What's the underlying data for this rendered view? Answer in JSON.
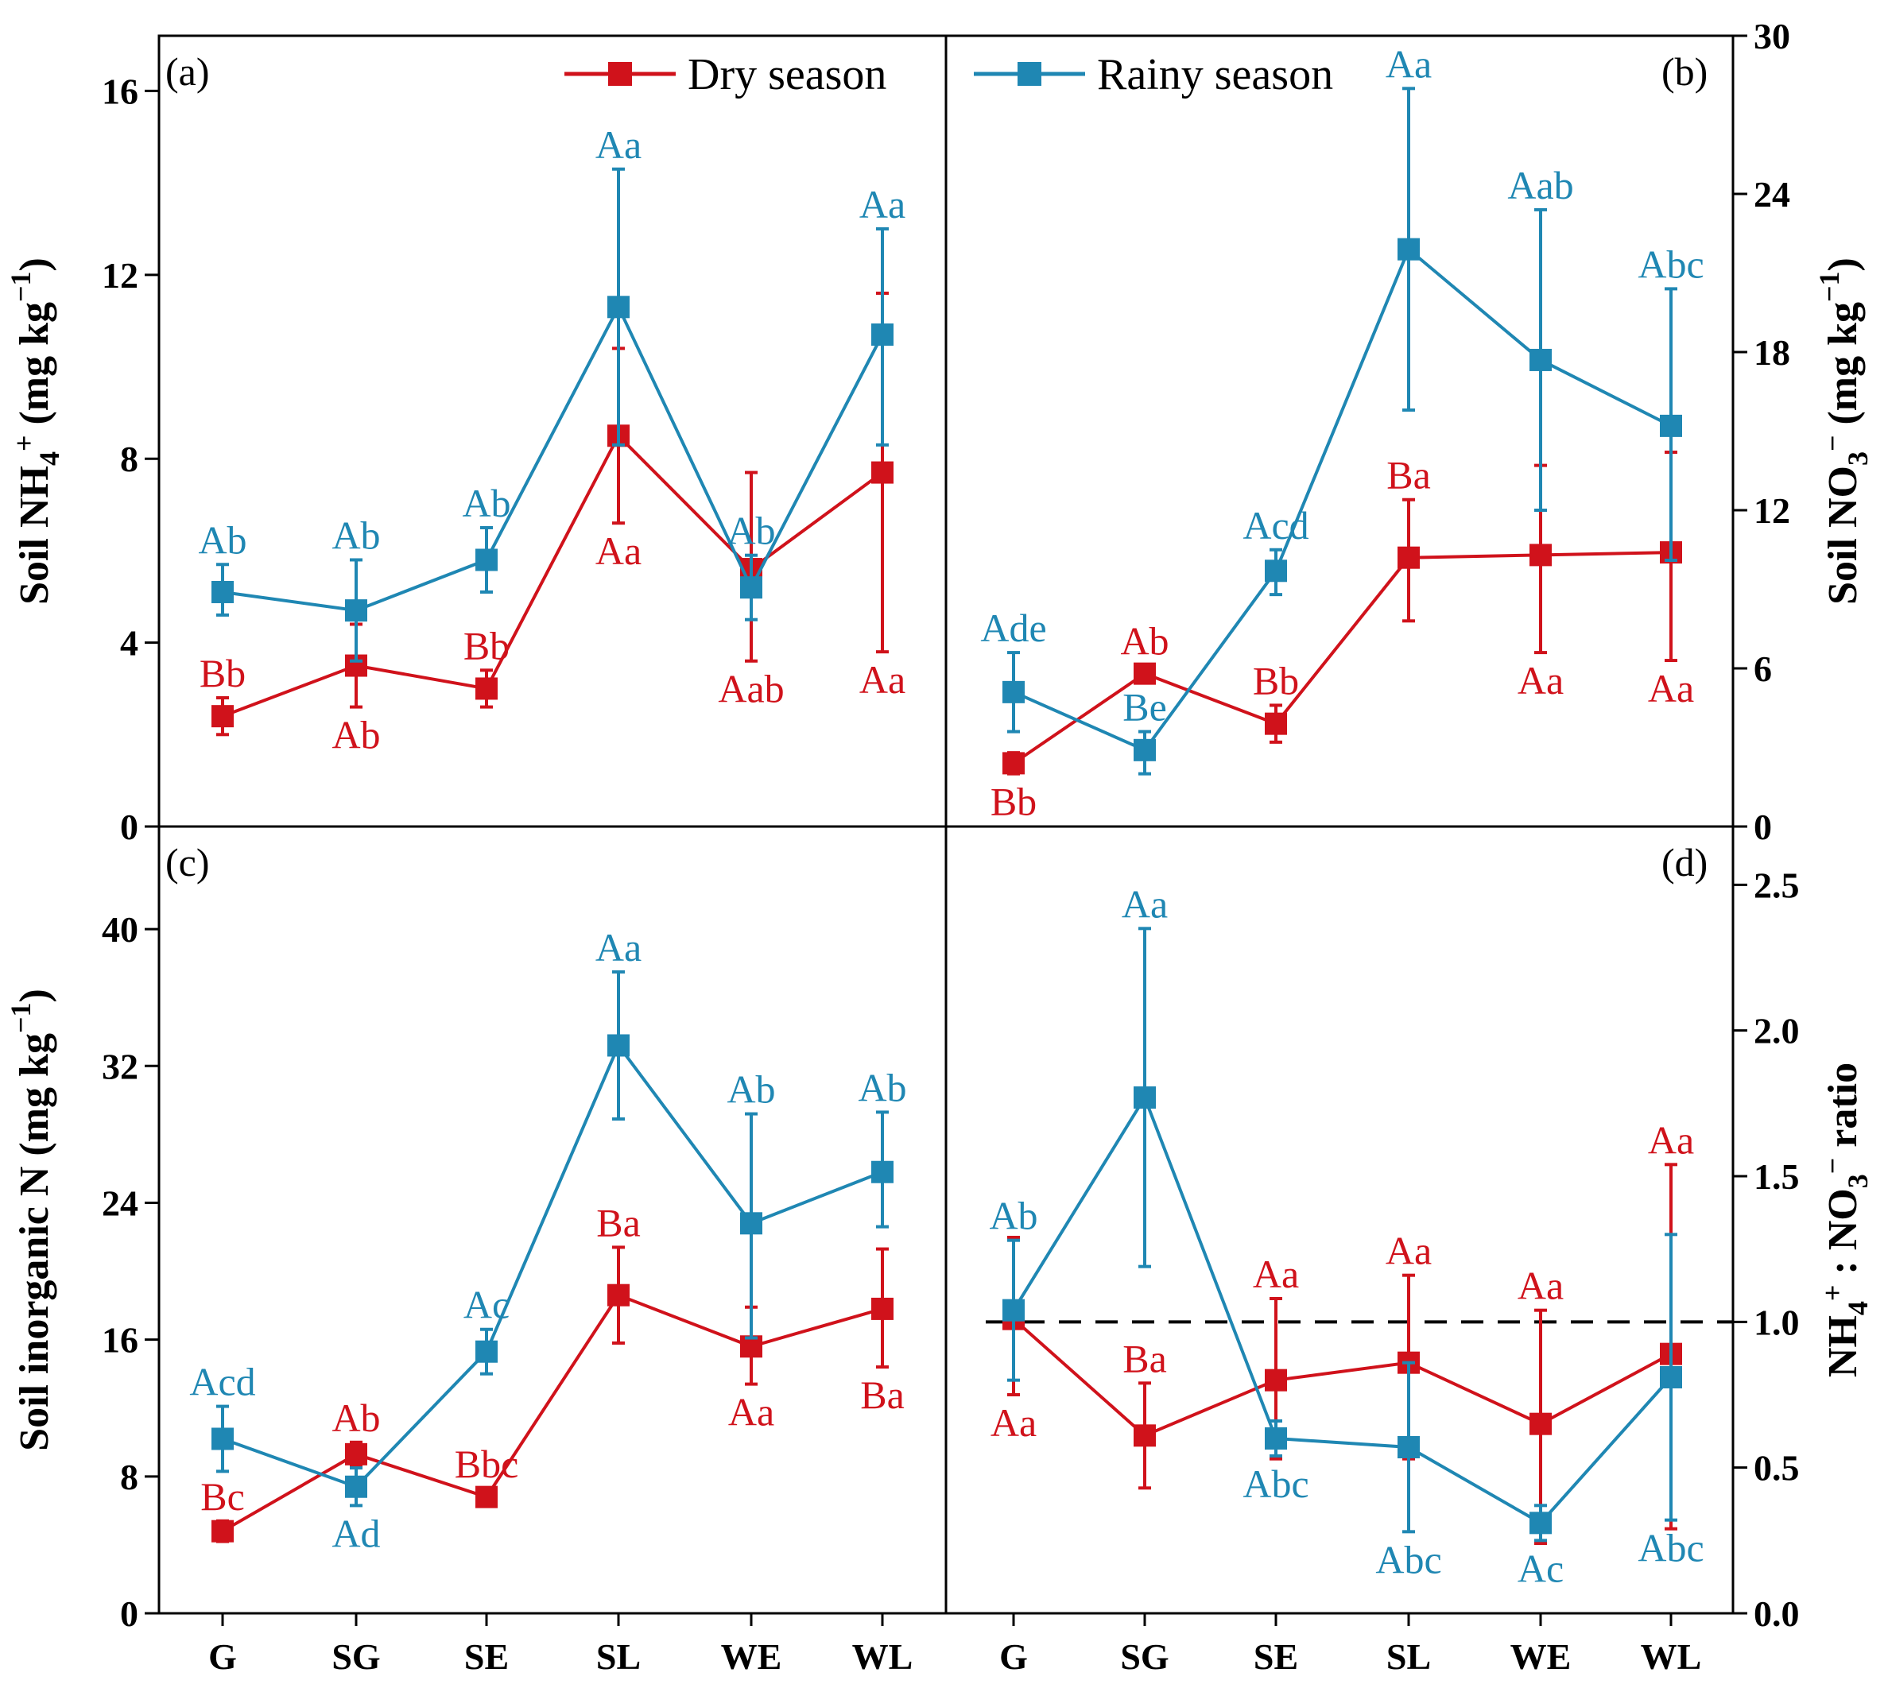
{
  "colors": {
    "dry": "#d0121b",
    "rainy": "#1f87b3"
  },
  "legend": {
    "dry": "Dry season",
    "rainy": "Rainy season"
  },
  "x_categories": [
    "G",
    "SG",
    "SE",
    "SL",
    "WE",
    "WL"
  ],
  "chart_data": [
    {
      "panel": "(a)",
      "type": "line",
      "ylabel": "Soil NH4+ (mg kg−1)",
      "ylabel_parts": {
        "pre": "Soil NH",
        "sub": "4",
        "sup": "+",
        "mid": " (mg kg",
        "sup2": "−1",
        "post": ")"
      },
      "ylabel_side": "left",
      "ylim": [
        0,
        17.2
      ],
      "yticks": [
        0,
        4,
        8,
        12,
        16
      ],
      "categories": [
        "G",
        "SG",
        "SE",
        "SL",
        "WE",
        "WL"
      ],
      "series": [
        {
          "name": "Dry season",
          "values": [
            2.4,
            3.5,
            3.0,
            8.5,
            5.6,
            7.7
          ],
          "err_low": [
            2.0,
            2.6,
            2.6,
            6.6,
            3.6,
            3.8
          ],
          "err_high": [
            2.8,
            4.4,
            3.4,
            10.4,
            7.7,
            11.6
          ],
          "labels": [
            "Bb",
            "Ab",
            "Bb",
            "Aa",
            "Aab",
            "Aa"
          ],
          "label_pos": [
            "above",
            "below",
            "above",
            "below",
            "below",
            "below"
          ]
        },
        {
          "name": "Rainy season",
          "values": [
            5.1,
            4.7,
            5.8,
            11.3,
            5.2,
            10.7
          ],
          "err_low": [
            4.6,
            3.6,
            5.1,
            8.3,
            4.5,
            8.3
          ],
          "err_high": [
            5.7,
            5.8,
            6.5,
            14.3,
            5.9,
            13.0
          ],
          "labels": [
            "Ab",
            "Ab",
            "Ab",
            "Aa",
            "Ab",
            "Aa"
          ],
          "label_pos": [
            "above",
            "above",
            "above",
            "above",
            "above",
            "above"
          ]
        }
      ]
    },
    {
      "panel": "(b)",
      "type": "line",
      "ylabel": "Soil NO3− (mg kg−1)",
      "ylabel_parts": {
        "pre": "Soil NO",
        "sub": "3",
        "sup": "−",
        "mid": " (mg kg",
        "sup2": "−1",
        "post": ")"
      },
      "ylabel_side": "right",
      "ylim": [
        0,
        30
      ],
      "yticks": [
        0,
        6,
        12,
        18,
        24,
        30
      ],
      "categories": [
        "G",
        "SG",
        "SE",
        "SL",
        "WE",
        "WL"
      ],
      "series": [
        {
          "name": "Dry season",
          "values": [
            2.4,
            5.8,
            3.9,
            10.2,
            10.3,
            10.4
          ],
          "err_low": [
            2.0,
            5.5,
            3.2,
            7.8,
            6.6,
            6.3
          ],
          "err_high": [
            2.8,
            6.1,
            4.6,
            12.4,
            13.7,
            14.2
          ],
          "labels": [
            "Bb",
            "Ab",
            "Bb",
            "Ba",
            "Aa",
            "Aa"
          ],
          "label_pos": [
            "below",
            "above",
            "above",
            "above",
            "below",
            "below"
          ]
        },
        {
          "name": "Rainy season",
          "values": [
            5.1,
            2.9,
            9.7,
            21.9,
            17.7,
            15.2
          ],
          "err_low": [
            3.6,
            2.0,
            8.8,
            15.8,
            12.0,
            10.1
          ],
          "err_high": [
            6.6,
            3.6,
            10.5,
            28.0,
            23.4,
            20.4
          ],
          "labels": [
            "Ade",
            "Be",
            "Acd",
            "Aa",
            "Aab",
            "Abc"
          ],
          "label_pos": [
            "above",
            "above",
            "above",
            "above",
            "above",
            "above"
          ]
        }
      ]
    },
    {
      "panel": "(c)",
      "type": "line",
      "ylabel": "Soil inorganic N (mg kg−1)",
      "ylabel_parts": {
        "pre": "Soil inorganic N",
        "sub": "",
        "sup": "",
        "mid": " (mg kg",
        "sup2": "−1",
        "post": ")"
      },
      "ylabel_side": "left",
      "ylim": [
        0,
        46
      ],
      "yticks": [
        0,
        8,
        16,
        24,
        32,
        40
      ],
      "categories": [
        "G",
        "SG",
        "SE",
        "SL",
        "WE",
        "WL"
      ],
      "series": [
        {
          "name": "Dry season",
          "values": [
            4.8,
            9.3,
            6.8,
            18.6,
            15.6,
            17.8
          ],
          "err_low": [
            4.2,
            8.6,
            6.3,
            15.8,
            13.4,
            14.4
          ],
          "err_high": [
            5.4,
            10.0,
            7.3,
            21.4,
            17.9,
            21.3
          ],
          "labels": [
            "Bc",
            "Ab",
            "Bbc",
            "Ba",
            "Aa",
            "Ba"
          ],
          "label_pos": [
            "above",
            "above",
            "above",
            "above",
            "below",
            "below"
          ]
        },
        {
          "name": "Rainy season",
          "values": [
            10.2,
            7.4,
            15.3,
            33.2,
            22.8,
            25.8
          ],
          "err_low": [
            8.3,
            6.3,
            14.0,
            28.9,
            16.1,
            22.6
          ],
          "err_high": [
            12.1,
            8.5,
            16.6,
            37.5,
            29.2,
            29.3
          ],
          "labels": [
            "Acd",
            "Ad",
            "Ac",
            "Aa",
            "Ab",
            "Ab"
          ],
          "label_pos": [
            "above",
            "below",
            "above",
            "above",
            "above",
            "above"
          ]
        }
      ]
    },
    {
      "panel": "(d)",
      "type": "line",
      "ylabel": "NH4+ : NO3− ratio",
      "ylabel_parts": {
        "pre": "NH",
        "sub": "4",
        "sup": "+",
        "mid": " : NO",
        "sub2": "3",
        "sup2": "−",
        "post": " ratio"
      },
      "ylabel_side": "right",
      "ylim": [
        0,
        2.7
      ],
      "yticks": [
        0.0,
        0.5,
        1.0,
        1.5,
        2.0,
        2.5
      ],
      "reference_line": 1.0,
      "categories": [
        "G",
        "SG",
        "SE",
        "SL",
        "WE",
        "WL"
      ],
      "series": [
        {
          "name": "Dry season",
          "values": [
            1.01,
            0.61,
            0.8,
            0.86,
            0.65,
            0.89
          ],
          "err_low": [
            0.75,
            0.43,
            0.53,
            0.53,
            0.24,
            0.29
          ],
          "err_high": [
            1.29,
            0.79,
            1.08,
            1.16,
            1.04,
            1.54
          ],
          "labels": [
            "Aa",
            "Ba",
            "Aa",
            "Aa",
            "Aa",
            "Aa"
          ],
          "label_pos": [
            "below",
            "above",
            "above",
            "above",
            "above",
            "above"
          ]
        },
        {
          "name": "Rainy season",
          "values": [
            1.04,
            1.77,
            0.6,
            0.57,
            0.31,
            0.81
          ],
          "err_low": [
            0.8,
            1.19,
            0.54,
            0.28,
            0.25,
            0.32
          ],
          "err_high": [
            1.28,
            2.35,
            0.66,
            0.86,
            0.37,
            1.3
          ],
          "labels": [
            "Ab",
            "Aa",
            "Abc",
            "Abc",
            "Ac",
            "Abc"
          ],
          "label_pos": [
            "above",
            "above",
            "below",
            "below",
            "below",
            "below"
          ]
        }
      ]
    }
  ]
}
